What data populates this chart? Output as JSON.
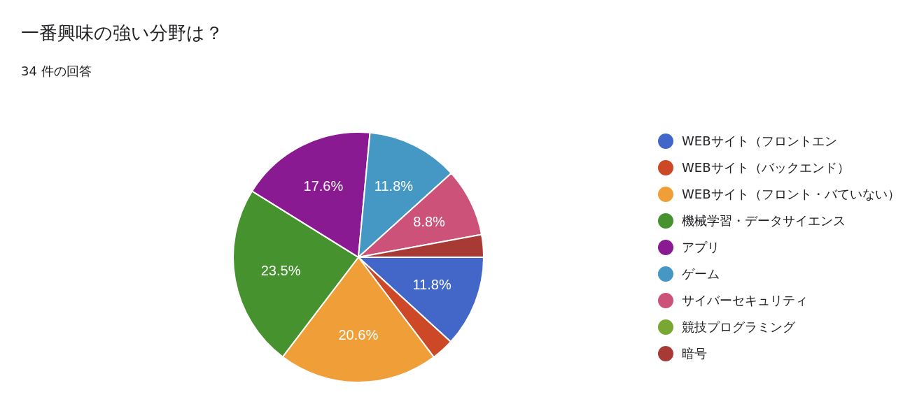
{
  "chart_data": {
    "type": "pie",
    "title": "一番興味の強い分野は？",
    "subtitle": "34 件の回答",
    "categories": [
      "WEBサイト（フロントエン",
      "WEBサイト（バックエンド）",
      "WEBサイト（フロント・バていない）",
      "機械学習・データサイエンス",
      "アプリ",
      "ゲーム",
      "サイバーセキュリティ",
      "競技プログラミング",
      "暗号"
    ],
    "values": [
      11.8,
      2.9,
      20.6,
      23.5,
      17.6,
      11.8,
      8.8,
      0,
      2.9
    ],
    "value_labels": [
      "11.8%",
      null,
      "20.6%",
      "23.5%",
      "17.6%",
      "11.8%",
      "8.8%",
      null,
      null
    ],
    "colors": [
      "#4267c8",
      "#cd4826",
      "#f09f38",
      "#45922f",
      "#8a1a91",
      "#4598c4",
      "#cc5279",
      "#78a832",
      "#a83a35"
    ],
    "legend": "right"
  }
}
